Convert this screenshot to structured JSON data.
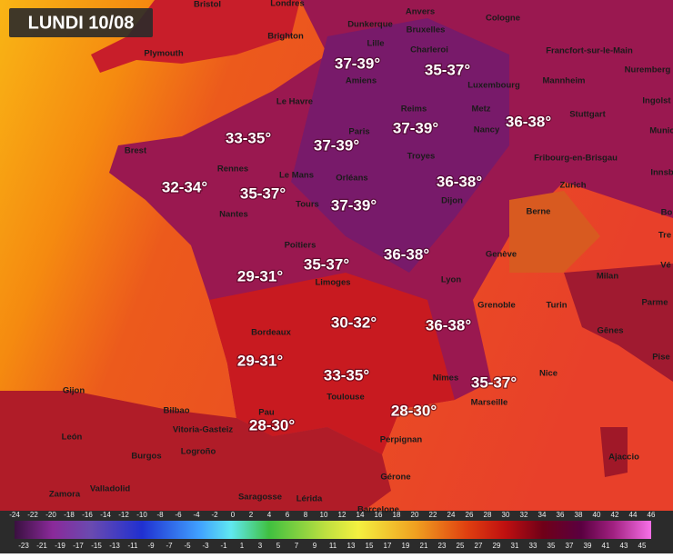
{
  "title": "LUNDI 10/08",
  "cities": [
    "Bristol",
    "Londres",
    "Dunkerque",
    "Anvers",
    "Cologne",
    "Brighton",
    "Lille",
    "Bruxelles",
    "Plymouth",
    "Charleroi",
    "Francfort-sur-le-Main",
    "Nuremberg",
    "Amiens",
    "Luxembourg",
    "Mannheim",
    "Ingolst",
    "Le Havre",
    "Reims",
    "Metz",
    "Stuttgart",
    "Munic",
    "Paris",
    "Nancy",
    "Brest",
    "Troyes",
    "Fribourg-en-Brisgau",
    "Innsb",
    "Rennes",
    "Le Mans",
    "Orléans",
    "Dijon",
    "Zurich",
    "Tours",
    "Nantes",
    "Berne",
    "Bo",
    "Tre",
    "Genève",
    "Poitiers",
    "Lyon",
    "Milan",
    "Vé",
    "Limoges",
    "Grenoble",
    "Turin",
    "Parme",
    "Bordeaux",
    "Gênes",
    "Pise",
    "Nîmes",
    "Nice",
    "Gijon",
    "Toulouse",
    "Marseille",
    "Bilbao",
    "Pau",
    "Vitoria-Gasteiz",
    "León",
    "Logroño",
    "Perpignan",
    "Burgos",
    "Ajaccio",
    "Gérone",
    "Zamora",
    "Valladolid",
    "Saragosse",
    "Lérida",
    "Barcelone"
  ],
  "temperature_zones": [
    "37-39°",
    "35-37°",
    "33-35°",
    "37-39°",
    "37-39°",
    "36-38°",
    "32-34°",
    "35-37°",
    "37-39°",
    "36-38°",
    "36-38°",
    "29-31°",
    "35-37°",
    "30-32°",
    "36-38°",
    "29-31°",
    "33-35°",
    "35-37°",
    "28-30°",
    "28-30°"
  ],
  "color_scale": {
    "top_ticks": [
      -24,
      -22,
      -20,
      -18,
      -16,
      -14,
      -12,
      -10,
      -8,
      -6,
      -4,
      -2,
      0,
      2,
      4,
      6,
      8,
      10,
      12,
      14,
      16,
      18,
      20,
      22,
      24,
      26,
      28,
      30,
      32,
      34,
      36,
      38,
      40,
      42,
      44,
      46
    ],
    "bottom_ticks": [
      -23,
      -21,
      -19,
      -17,
      -15,
      -13,
      -11,
      -9,
      -7,
      -5,
      -3,
      -1,
      1,
      3,
      5,
      7,
      9,
      11,
      13,
      15,
      17,
      19,
      21,
      23,
      25,
      27,
      29,
      31,
      33,
      35,
      37,
      39,
      41,
      43,
      45
    ]
  }
}
